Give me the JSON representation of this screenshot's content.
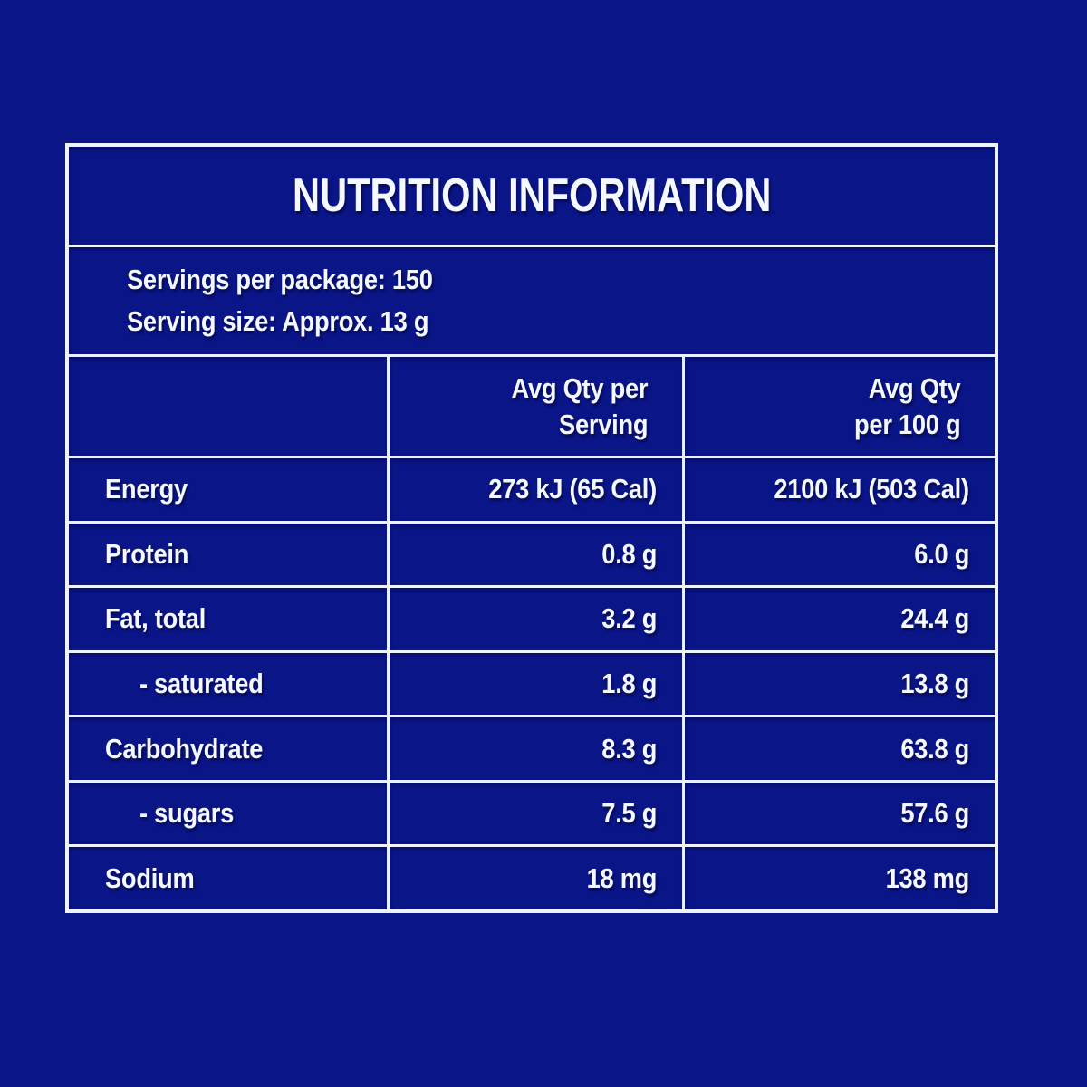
{
  "colors": {
    "background": "#0a1588",
    "grid_line": "#edf2fb",
    "text": "#f5f8ff"
  },
  "panel": {
    "title": "NUTRITION INFORMATION",
    "serving_info": {
      "servings_per_package": "Servings per package: 150",
      "serving_size": "Serving size: Approx. 13 g"
    },
    "columns": {
      "per_serving": "Avg Qty per\nServing",
      "per_100g": "Avg Qty\nper 100 g"
    },
    "rows": [
      {
        "label": "Energy",
        "per_serving": "273 kJ (65 Cal)",
        "per_100g": "2100 kJ (503 Cal)"
      },
      {
        "label": "Protein",
        "per_serving": "0.8 g",
        "per_100g": "6.0 g"
      },
      {
        "label": "Fat, total",
        "per_serving": "3.2 g",
        "per_100g": "24.4 g"
      },
      {
        "label": "- saturated",
        "per_serving": "1.8 g",
        "per_100g": "13.8 g"
      },
      {
        "label": "Carbohydrate",
        "per_serving": "8.3 g",
        "per_100g": "63.8 g"
      },
      {
        "label": "- sugars",
        "per_serving": "7.5 g",
        "per_100g": "57.6 g"
      },
      {
        "label": "Sodium",
        "per_serving": "18 mg",
        "per_100g": "138 mg"
      }
    ]
  }
}
